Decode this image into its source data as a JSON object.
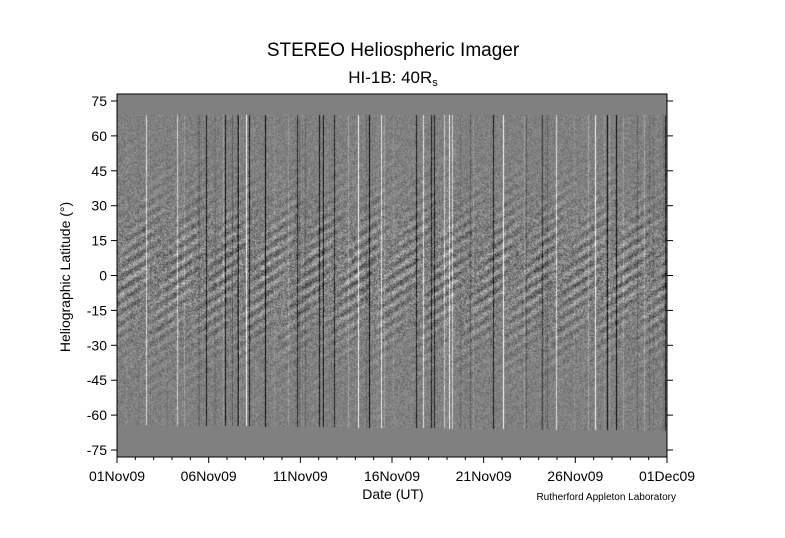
{
  "chart_data": {
    "type": "heatmap",
    "title": "STEREO Heliospheric Imager",
    "subtitle_main": "HI-1B: 40R",
    "subtitle_sub": "s",
    "xlabel": "Date (UT)",
    "ylabel": "Heliographic Latitude (°)",
    "credit": "Rutherford Appleton Laboratory",
    "x_ticks": [
      "01Nov09",
      "06Nov09",
      "11Nov09",
      "16Nov09",
      "21Nov09",
      "26Nov09",
      "01Dec09"
    ],
    "xlim": [
      "01Nov09",
      "01Dec09"
    ],
    "y_ticks": [
      75,
      60,
      45,
      30,
      15,
      0,
      -15,
      -30,
      -45,
      -60,
      -75
    ],
    "ylim": [
      -78,
      78
    ],
    "data_coverage_lat": {
      "top": 69,
      "bottom": -64
    },
    "colormap": "grayscale running-difference",
    "no_data_color": "#808080",
    "grid": false
  }
}
